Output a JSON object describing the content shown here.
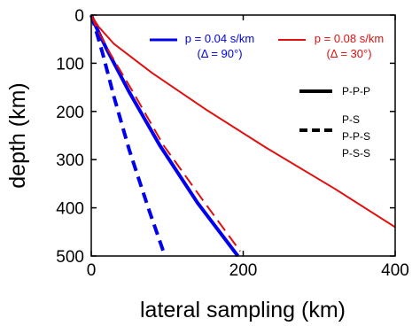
{
  "chart_data": {
    "type": "line",
    "xlabel": "lateral sampling (km)",
    "ylabel": "depth (km)",
    "xlim": [
      0,
      400
    ],
    "ylim": [
      0,
      500
    ],
    "y_inverted": true,
    "x_ticks": [
      0,
      200,
      400
    ],
    "y_ticks": [
      0,
      100,
      200,
      300,
      400,
      500
    ],
    "grid": false,
    "series": [
      {
        "name": "p = 0.04 s/km",
        "color": "#0000ee",
        "style": "solid",
        "points": [
          [
            0,
            0
          ],
          [
            5,
            20
          ],
          [
            20,
            70
          ],
          [
            50,
            160
          ],
          [
            90,
            270
          ],
          [
            140,
            390
          ],
          [
            193,
            500
          ]
        ]
      },
      {
        "name": "p = 0.04 s/km",
        "color": "#0000ee",
        "style": "dashed",
        "points": [
          [
            0,
            0
          ],
          [
            5,
            25
          ],
          [
            15,
            80
          ],
          [
            30,
            170
          ],
          [
            50,
            280
          ],
          [
            75,
            400
          ],
          [
            97,
            500
          ]
        ]
      },
      {
        "name": "p = 0.08 s/km",
        "color": "#e01010",
        "style": "solid",
        "points": [
          [
            0,
            0
          ],
          [
            10,
            25
          ],
          [
            30,
            60
          ],
          [
            80,
            120
          ],
          [
            150,
            195
          ],
          [
            230,
            275
          ],
          [
            320,
            360
          ],
          [
            400,
            440
          ]
        ]
      },
      {
        "name": "p = 0.08 s/km",
        "color": "#e01010",
        "style": "dashed",
        "points": [
          [
            0,
            0
          ],
          [
            8,
            30
          ],
          [
            25,
            80
          ],
          [
            55,
            160
          ],
          [
            95,
            270
          ],
          [
            145,
            380
          ],
          [
            196,
            490
          ]
        ]
      }
    ],
    "annotations": [
      {
        "line1": "p = 0.04 s/km",
        "line2": "(Δ = 90°)",
        "color": "#0000ee"
      },
      {
        "line1": "p = 0.08 s/km",
        "line2": "(Δ = 30°)",
        "color": "#e01010"
      }
    ],
    "legend": {
      "placement": "right",
      "solid_label": "P-P-P",
      "dashed_labels": [
        "P-S",
        "P-P-S",
        "P-S-S"
      ]
    }
  }
}
